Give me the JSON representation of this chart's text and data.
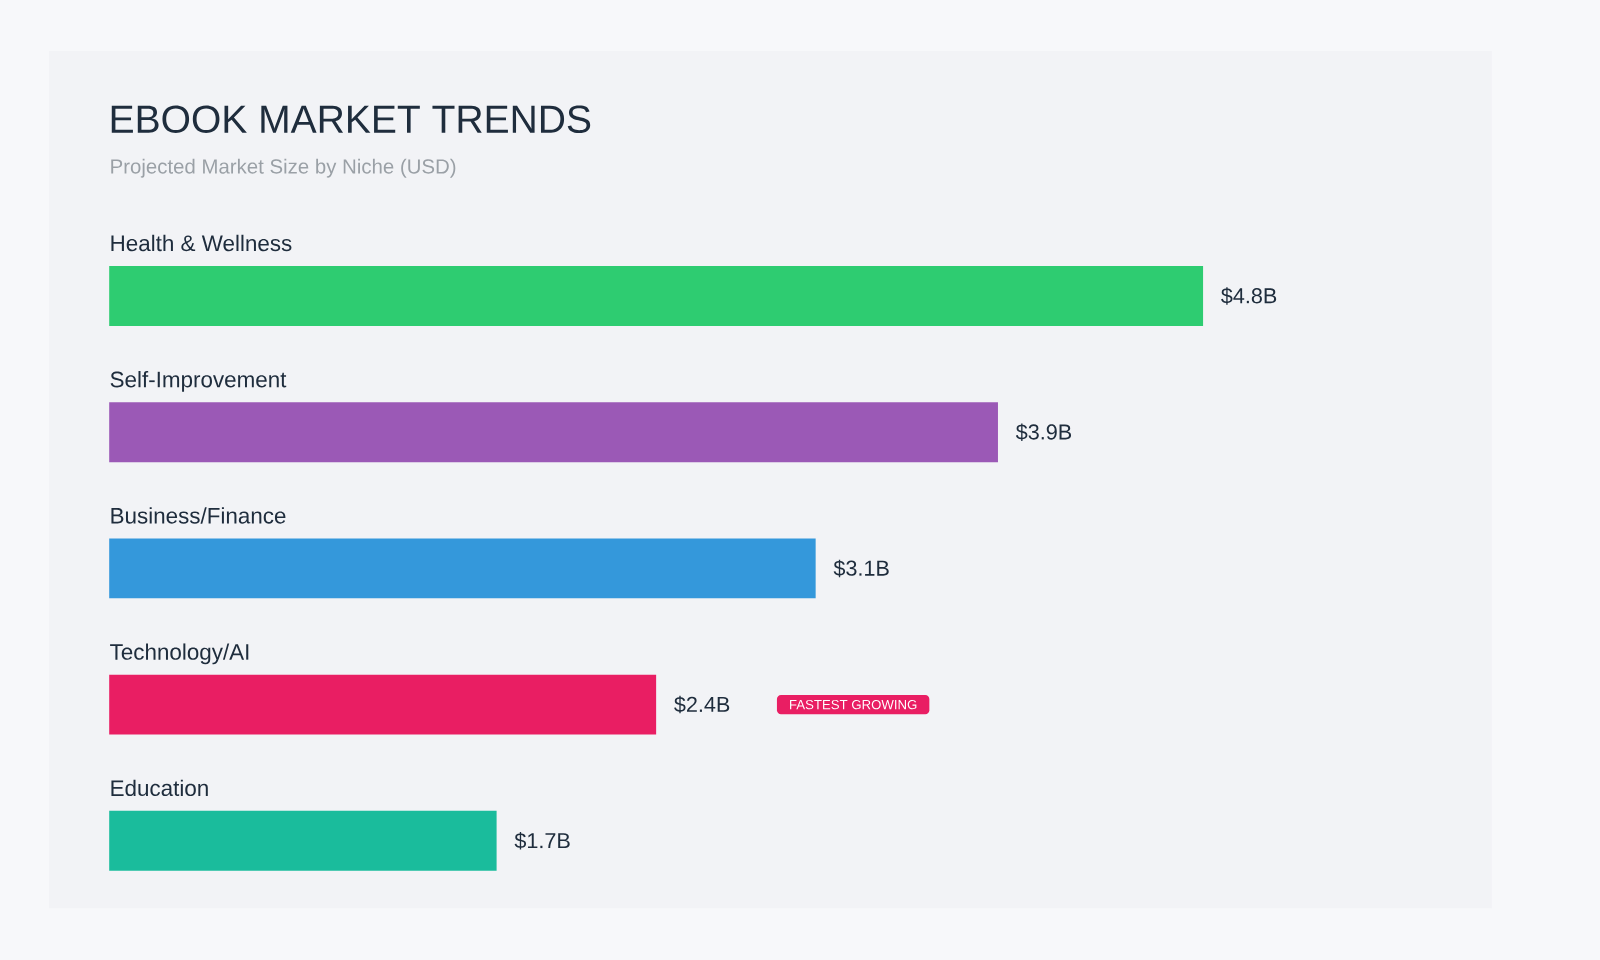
{
  "chart_data": {
    "type": "bar",
    "orientation": "horizontal",
    "title": "EBOOK MARKET TRENDS",
    "subtitle": "Projected Market Size by Niche (USD)",
    "categories": [
      "Health & Wellness",
      "Self-Improvement",
      "Business/Finance",
      "Technology/AI",
      "Education"
    ],
    "values": [
      4.8,
      3.9,
      3.1,
      2.4,
      1.7
    ],
    "colors": [
      "#2ecc71",
      "#9b59b6",
      "#3498db",
      "#e91e63",
      "#1abc9c"
    ],
    "value_labels": [
      "$4.8B",
      "$3.9B",
      "$3.1B",
      "$2.4B",
      "$1.7B"
    ],
    "annotations": [
      "FASTEST GROWING"
    ]
  }
}
